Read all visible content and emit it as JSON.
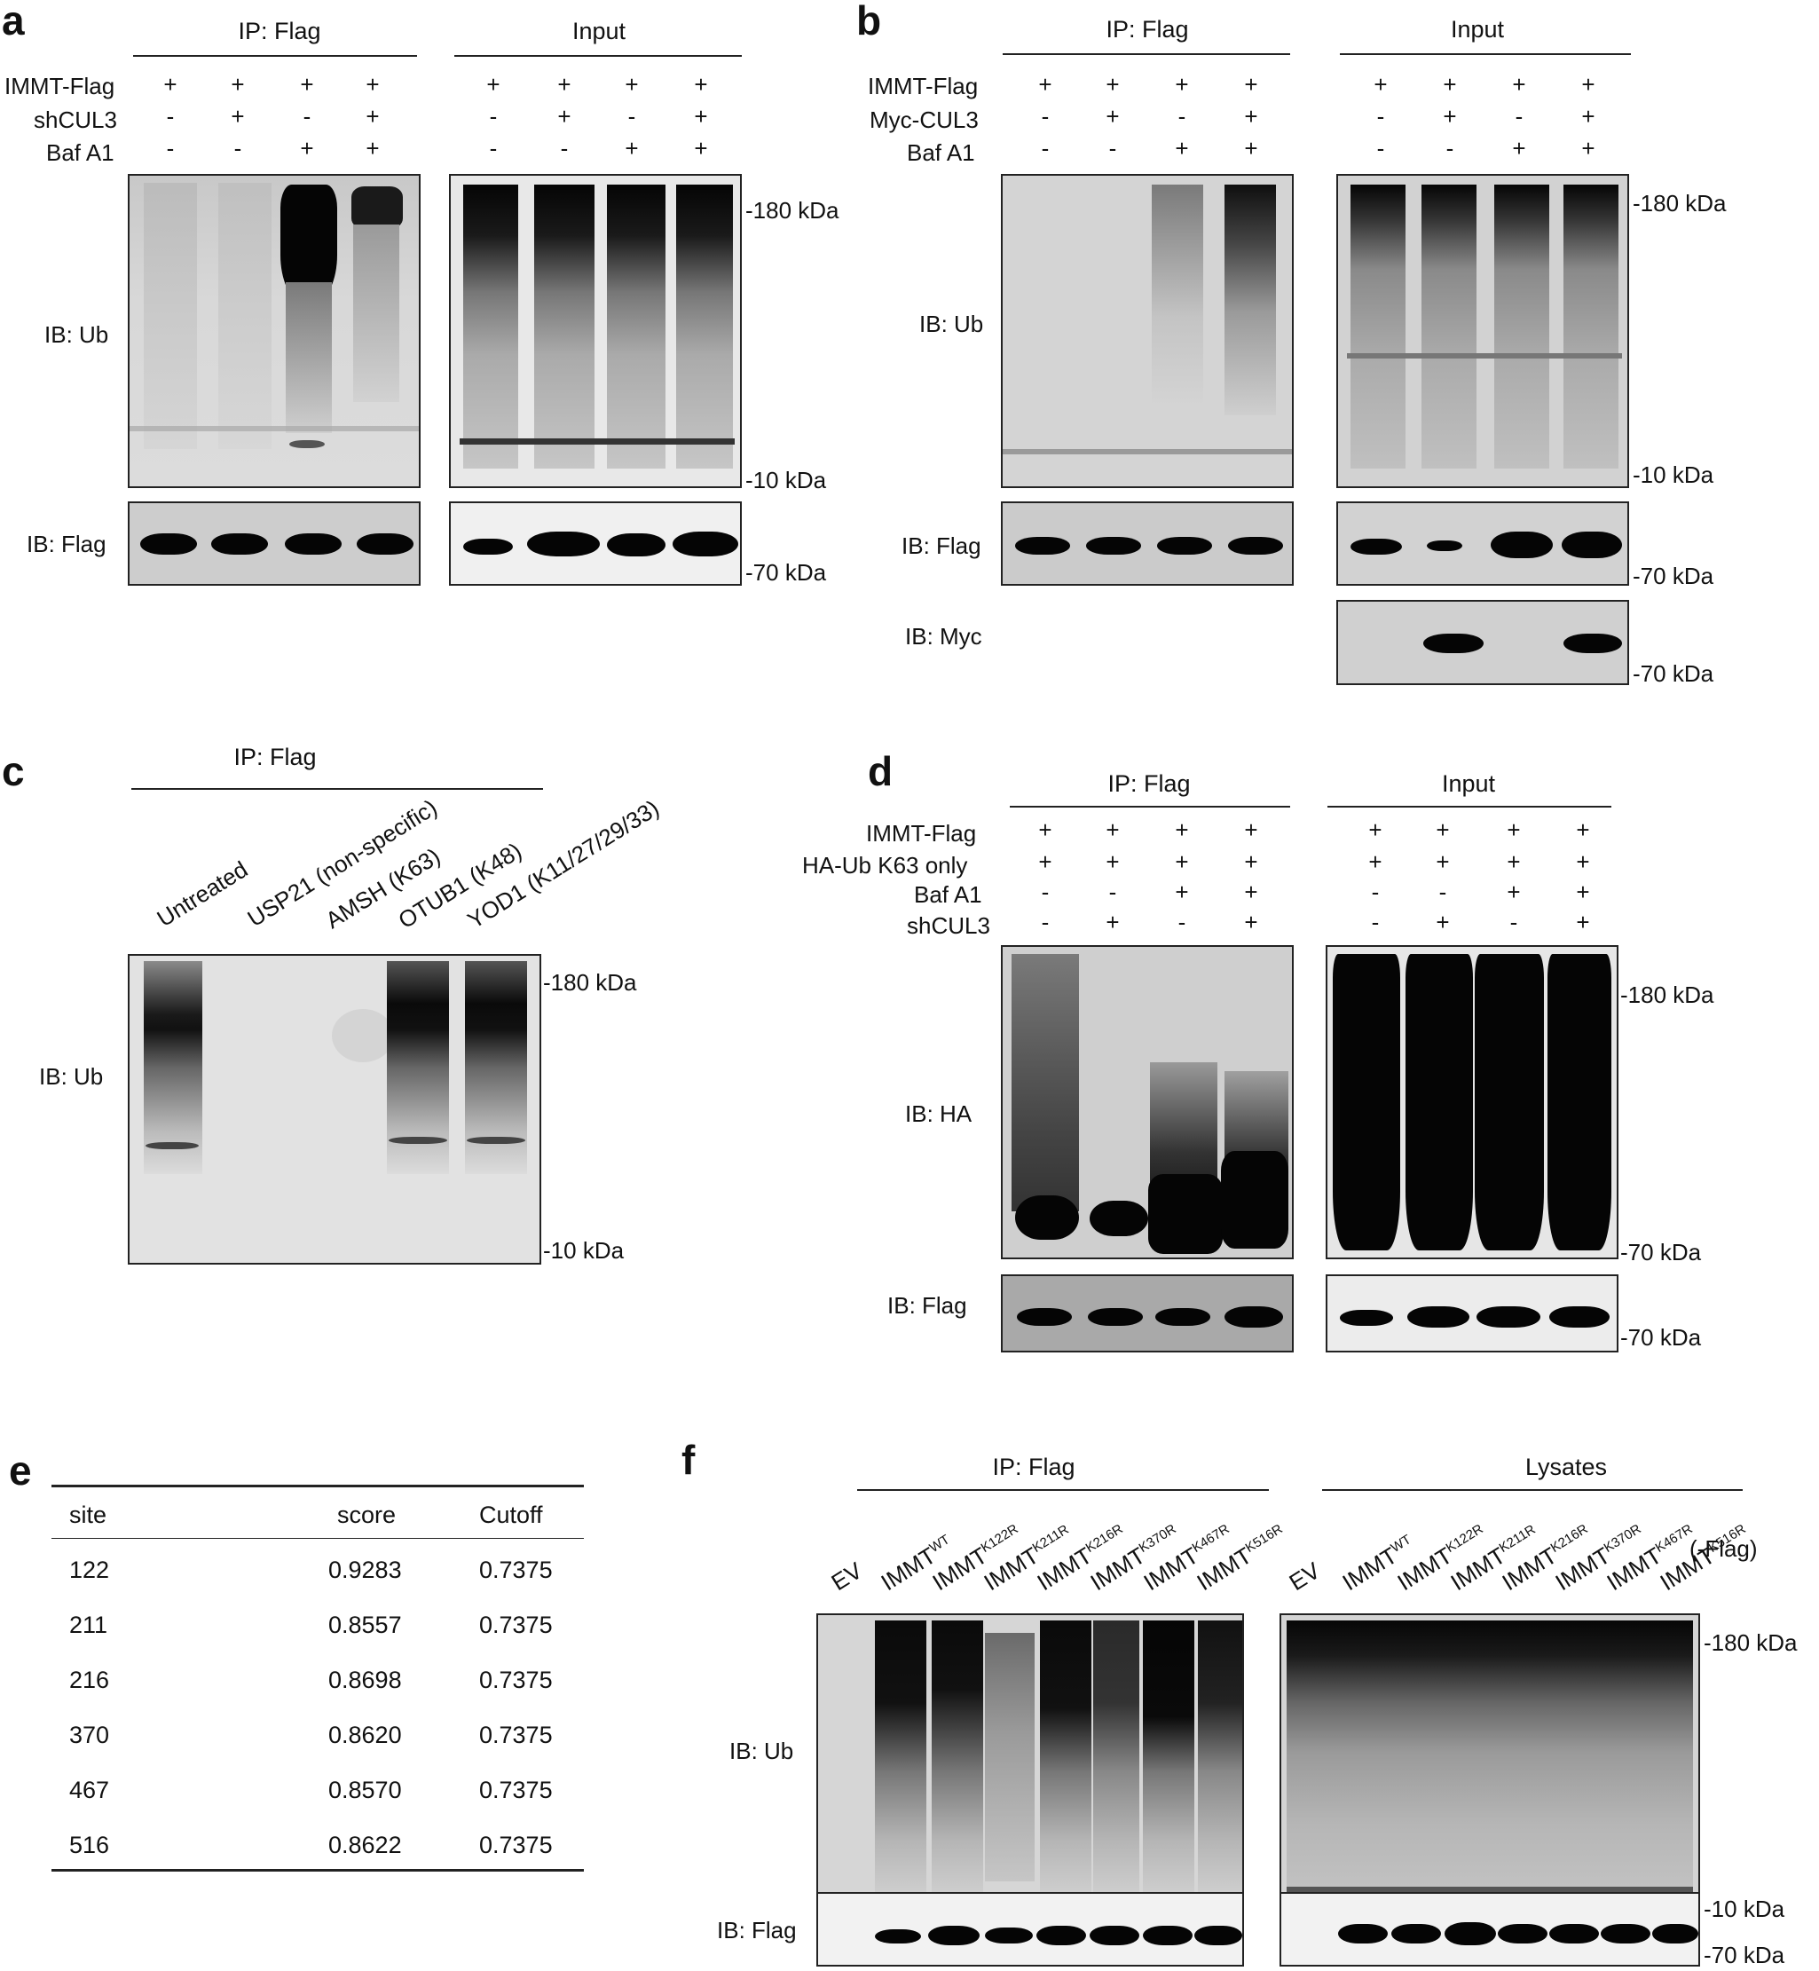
{
  "panels": {
    "a": {
      "label": "a",
      "ip_header": "IP: Flag",
      "input_header": "Input",
      "rows": [
        {
          "name": "IMMT-Flag",
          "ip": [
            "+",
            "+",
            "+",
            "+"
          ],
          "input": [
            "+",
            "+",
            "+",
            "+"
          ]
        },
        {
          "name": "shCUL3",
          "ip": [
            "-",
            "+",
            "-",
            "+"
          ],
          "input": [
            "-",
            "+",
            "-",
            "+"
          ]
        },
        {
          "name": "Baf A1",
          "ip": [
            "-",
            "-",
            "+",
            "+"
          ],
          "input": [
            "-",
            "-",
            "+",
            "+"
          ]
        }
      ],
      "blots": [
        {
          "label": "IB: Ub",
          "markers": [
            "180 kDa",
            "10 kDa"
          ]
        },
        {
          "label": "IB: Flag",
          "markers": [
            "70 kDa"
          ]
        }
      ]
    },
    "b": {
      "label": "b",
      "ip_header": "IP: Flag",
      "input_header": "Input",
      "rows": [
        {
          "name": "IMMT-Flag",
          "ip": [
            "+",
            "+",
            "+",
            "+"
          ],
          "input": [
            "+",
            "+",
            "+",
            "+"
          ]
        },
        {
          "name": "Myc-CUL3",
          "ip": [
            "-",
            "+",
            "-",
            "+"
          ],
          "input": [
            "-",
            "+",
            "-",
            "+"
          ]
        },
        {
          "name": "Baf A1",
          "ip": [
            "-",
            "-",
            "+",
            "+"
          ],
          "input": [
            "-",
            "-",
            "+",
            "+"
          ]
        }
      ],
      "blots": [
        {
          "label": "IB: Ub",
          "markers": [
            "180 kDa",
            "10 kDa"
          ]
        },
        {
          "label": "IB: Flag",
          "markers": [
            "70 kDa"
          ]
        },
        {
          "label": "IB: Myc",
          "markers": [
            "70 kDa"
          ]
        }
      ]
    },
    "c": {
      "label": "c",
      "ip_header": "IP: Flag",
      "lanes": [
        "Untreated",
        "USP21 (non-specific)",
        "AMSH (K63)",
        "OTUB1 (K48)",
        "YOD1 (K11/27/29/33)"
      ],
      "blots": [
        {
          "label": "IB: Ub",
          "markers": [
            "180 kDa",
            "10 kDa"
          ]
        }
      ]
    },
    "d": {
      "label": "d",
      "ip_header": "IP: Flag",
      "input_header": "Input",
      "rows": [
        {
          "name": "IMMT-Flag",
          "ip": [
            "+",
            "+",
            "+",
            "+"
          ],
          "input": [
            "+",
            "+",
            "+",
            "+"
          ]
        },
        {
          "name": "HA-Ub K63 only",
          "ip": [
            "+",
            "+",
            "+",
            "+"
          ],
          "input": [
            "+",
            "+",
            "+",
            "+"
          ]
        },
        {
          "name": "Baf A1",
          "ip": [
            "-",
            "-",
            "+",
            "+"
          ],
          "input": [
            "-",
            "-",
            "+",
            "+"
          ]
        },
        {
          "name": "shCUL3",
          "ip": [
            "-",
            "+",
            "-",
            "+"
          ],
          "input": [
            "-",
            "+",
            "-",
            "+"
          ]
        }
      ],
      "blots": [
        {
          "label": "IB: HA",
          "markers": [
            "180 kDa",
            "70 kDa"
          ]
        },
        {
          "label": "IB: Flag",
          "markers": [
            "70 kDa"
          ]
        }
      ]
    },
    "e": {
      "label": "e",
      "columns": [
        "site",
        "score",
        "Cutoff"
      ],
      "rows": [
        [
          "122",
          "0.9283",
          "0.7375"
        ],
        [
          "211",
          "0.8557",
          "0.7375"
        ],
        [
          "216",
          "0.8698",
          "0.7375"
        ],
        [
          "370",
          "0.8620",
          "0.7375"
        ],
        [
          "467",
          "0.8570",
          "0.7375"
        ],
        [
          "516",
          "0.8622",
          "0.7375"
        ]
      ]
    },
    "f": {
      "label": "f",
      "ip_header": "IP: Flag",
      "lysate_header": "Lysates",
      "lane_base": "IMMT",
      "lanes": [
        {
          "base": "EV",
          "sup": ""
        },
        {
          "base": "IMMT",
          "sup": "WT"
        },
        {
          "base": "IMMT",
          "sup": "K122R"
        },
        {
          "base": "IMMT",
          "sup": "K211R"
        },
        {
          "base": "IMMT",
          "sup": "K216R"
        },
        {
          "base": "IMMT",
          "sup": "K370R"
        },
        {
          "base": "IMMT",
          "sup": "K467R"
        },
        {
          "base": "IMMT",
          "sup": "K516R"
        }
      ],
      "flag_note": "(-Flag)",
      "blots": [
        {
          "label": "IB: Ub",
          "markers": [
            "180 kDa",
            "10 kDa"
          ]
        },
        {
          "label": "IB: Flag",
          "markers": [
            "70 kDa"
          ]
        }
      ]
    }
  }
}
